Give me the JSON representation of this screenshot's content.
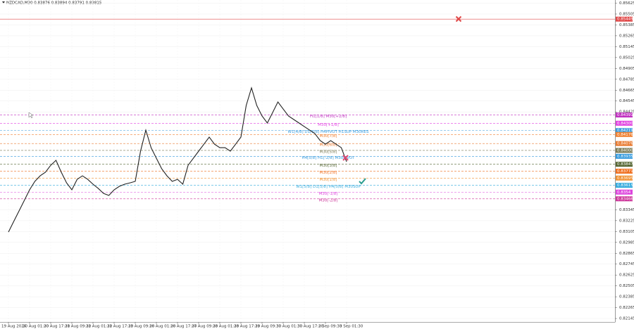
{
  "chart_data": {
    "type": "line",
    "title": "NZDCAD,M30  0.83876 0.83894 0.83791 0.83815",
    "categories": [
      "19 Aug 2024",
      null,
      null,
      null,
      "20 Aug 01:30",
      null,
      null,
      null,
      "20 Aug 17:30",
      null,
      null,
      null,
      "21 Aug 09:30",
      null,
      null,
      null,
      "22 Aug 01:30",
      null,
      null,
      null,
      "22 Aug 17:30",
      null,
      null,
      null,
      "23 Aug 09:30",
      null,
      null,
      null,
      "26 Aug 01:30",
      null,
      null,
      null,
      "26 Aug 17:30",
      null,
      null,
      null,
      "27 Aug 09:30",
      null,
      null,
      null,
      "28 Aug 01:30",
      null,
      null,
      null,
      "28 Aug 17:30",
      null,
      null,
      null,
      "29 Aug 09:30",
      null,
      null,
      null,
      "30 Aug 01:30",
      null,
      null,
      null,
      "30 Aug 17:30",
      null,
      null,
      null,
      "2 Sep 09:30",
      null,
      null,
      null,
      "3 Sep 01:30"
    ],
    "series": [
      {
        "color": "#222222",
        "values": [
          0.83099,
          0.83216,
          0.83332,
          0.83448,
          0.83565,
          0.83658,
          0.8372,
          0.83759,
          0.83836,
          0.83891,
          0.83759,
          0.83642,
          0.83565,
          0.83681,
          0.8372,
          0.83681,
          0.83627,
          0.8358,
          0.83526,
          0.83503,
          0.83565,
          0.83604,
          0.83627,
          0.83642,
          0.83658,
          0.83992,
          0.84224,
          0.8403,
          0.83914,
          0.83798,
          0.8372,
          0.83658,
          0.83681,
          0.83627,
          0.83836,
          0.83914,
          0.83992,
          0.84069,
          0.84147,
          0.84069,
          0.8403,
          0.8403,
          0.83992,
          0.84069,
          0.84147,
          0.84496,
          0.8469,
          0.84496,
          0.8438,
          0.84302,
          0.84418,
          0.84535,
          0.84457,
          0.8438,
          0.84341,
          0.84302,
          0.84263,
          0.84224,
          0.84186,
          0.84108,
          0.84069,
          0.84108,
          0.84069,
          0.8403,
          0.83875
        ]
      }
    ],
    "ylim": [
      0.8213,
      0.8566
    ],
    "yticks": [
      0.85625,
      0.85505,
      0.85385,
      0.85265,
      0.85145,
      0.85025,
      0.84905,
      0.84785,
      0.84665,
      0.84545,
      0.84425,
      0.83345,
      0.83225,
      0.83105,
      0.82985,
      0.82865,
      0.82745,
      0.82625,
      0.82505,
      0.82385,
      0.82265,
      0.82145
    ],
    "grid": true,
    "levels": [
      {
        "price": 0.85449,
        "color": "#e04848"
      },
      {
        "price": 0.84391,
        "label": "H1[1/8] M30[+2/8]",
        "color": "#c030c0"
      },
      {
        "price": 0.843,
        "price_label": "0.84300",
        "label": "M30[+1/8]",
        "color": "#e040e0"
      },
      {
        "price": 0.84219,
        "label": "W1[4/8] D1[6/8] H4PIVOT H1SUP M30RES",
        "color": "#3399dd"
      },
      {
        "price": 0.84176,
        "label": "M30[7/8]",
        "color": "#f08030"
      },
      {
        "price": 0.84076,
        "label": "M30[6/8]",
        "color": "#e87a30"
      },
      {
        "price": 0.84,
        "price_label": "0.84000",
        "label": "M30[5/8]",
        "color": "#7a7a55"
      },
      {
        "price": 0.83935,
        "label": "H4[5/8] H1[-2/8] M30PIVOT",
        "color": "#3399dd"
      },
      {
        "price": 0.83847,
        "label": "M30[3/8]",
        "color": "#556633"
      },
      {
        "price": 0.83771,
        "label": "M30[2/8]",
        "color": "#f07020"
      },
      {
        "price": 0.83695,
        "label": "M30[1/8]",
        "color": "#f09030"
      },
      {
        "price": 0.83615,
        "label": "W1[5/8] D1[5/8] H4[0/8] M30SUP",
        "color": "#33aadd"
      },
      {
        "price": 0.8354,
        "label": "M30[-1/8]",
        "color": "#dd44dd"
      },
      {
        "price": 0.83466,
        "label": "M30[-2/8]",
        "color": "#cc3399"
      }
    ]
  }
}
